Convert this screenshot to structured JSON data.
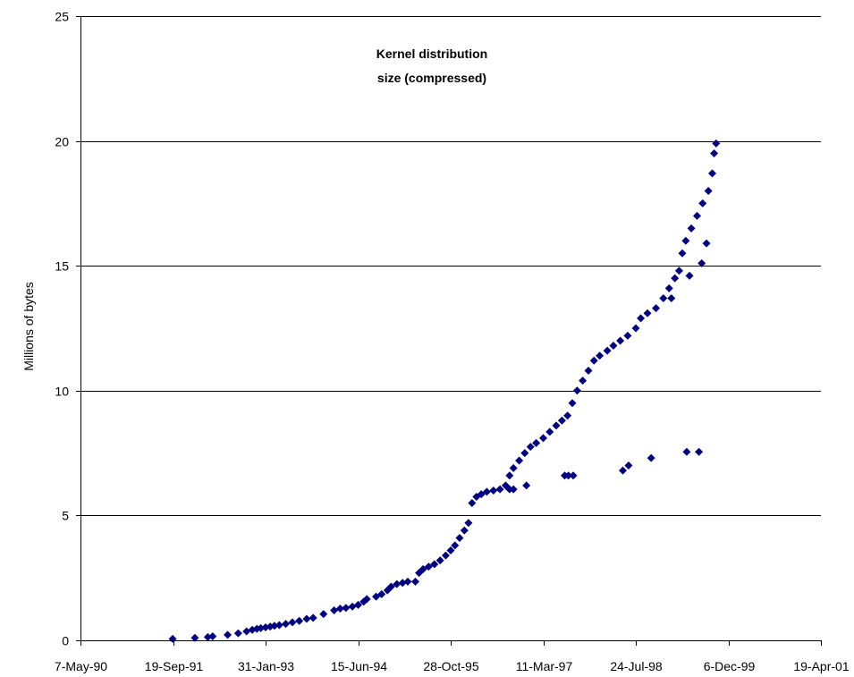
{
  "chart_data": {
    "type": "scatter",
    "title_lines": [
      "Kernel distribution",
      "size (compressed)"
    ],
    "xlabel": "",
    "ylabel": "Millions of bytes",
    "x_axis_type": "date",
    "xlim": [
      "1990-05-07",
      "2001-04-19"
    ],
    "x_ticks": [
      "1990-05-07",
      "1991-09-19",
      "1993-01-31",
      "1994-06-15",
      "1995-10-28",
      "1997-03-11",
      "1998-07-24",
      "1999-12-06",
      "2001-04-19"
    ],
    "x_tick_labels": [
      "7-May-90",
      "19-Sep-91",
      "31-Jan-93",
      "15-Jun-94",
      "28-Oct-95",
      "11-Mar-97",
      "24-Jul-98",
      "6-Dec-99",
      "19-Apr-01"
    ],
    "ylim": [
      0,
      25
    ],
    "y_ticks": [
      0,
      5,
      10,
      15,
      20,
      25
    ],
    "y_tick_labels": [
      "0",
      "5",
      "10",
      "15",
      "20",
      "25"
    ],
    "grid": "horizontal",
    "legend": "none",
    "marker": "diamond",
    "marker_color": "#000080",
    "series": [
      {
        "values": [
          [
            "1991-09-17",
            0.06
          ],
          [
            "1992-01-15",
            0.1
          ],
          [
            "1992-03-25",
            0.13
          ],
          [
            "1992-04-20",
            0.16
          ],
          [
            "1992-07-10",
            0.22
          ],
          [
            "1992-09-05",
            0.28
          ],
          [
            "1992-10-20",
            0.36
          ],
          [
            "1992-11-20",
            0.42
          ],
          [
            "1992-12-15",
            0.46
          ],
          [
            "1993-01-05",
            0.49
          ],
          [
            "1993-01-31",
            0.52
          ],
          [
            "1993-02-25",
            0.55
          ],
          [
            "1993-03-20",
            0.58
          ],
          [
            "1993-04-15",
            0.61
          ],
          [
            "1993-05-20",
            0.66
          ],
          [
            "1993-06-25",
            0.72
          ],
          [
            "1993-08-01",
            0.78
          ],
          [
            "1993-09-10",
            0.86
          ],
          [
            "1993-10-15",
            0.9
          ],
          [
            "1993-12-10",
            1.05
          ],
          [
            "1994-02-05",
            1.2
          ],
          [
            "1994-03-10",
            1.27
          ],
          [
            "1994-04-10",
            1.3
          ],
          [
            "1994-05-15",
            1.35
          ],
          [
            "1994-06-15",
            1.42
          ],
          [
            "1994-07-15",
            1.55
          ],
          [
            "1994-08-01",
            1.65
          ],
          [
            "1994-09-20",
            1.75
          ],
          [
            "1994-10-20",
            1.85
          ],
          [
            "1994-11-20",
            2.0
          ],
          [
            "1994-12-10",
            2.15
          ],
          [
            "1995-01-10",
            2.25
          ],
          [
            "1995-02-10",
            2.3
          ],
          [
            "1995-03-10",
            2.35
          ],
          [
            "1995-04-20",
            2.35
          ],
          [
            "1995-05-10",
            2.7
          ],
          [
            "1995-06-01",
            2.85
          ],
          [
            "1995-07-01",
            2.95
          ],
          [
            "1995-08-01",
            3.05
          ],
          [
            "1995-09-01",
            3.2
          ],
          [
            "1995-10-01",
            3.4
          ],
          [
            "1995-10-28",
            3.6
          ],
          [
            "1995-11-20",
            3.8
          ],
          [
            "1995-12-15",
            4.1
          ],
          [
            "1996-01-10",
            4.4
          ],
          [
            "1996-02-01",
            4.7
          ],
          [
            "1996-02-20",
            5.5
          ],
          [
            "1996-03-15",
            5.75
          ],
          [
            "1996-04-10",
            5.85
          ],
          [
            "1996-05-10",
            5.95
          ],
          [
            "1996-06-15",
            6.0
          ],
          [
            "1996-07-20",
            6.05
          ],
          [
            "1996-08-20",
            6.2
          ],
          [
            "1996-09-10",
            6.6
          ],
          [
            "1996-10-01",
            6.9
          ],
          [
            "1996-11-01",
            7.2
          ],
          [
            "1996-12-01",
            7.5
          ],
          [
            "1997-01-01",
            7.75
          ],
          [
            "1997-02-01",
            7.9
          ],
          [
            "1997-03-11",
            8.1
          ],
          [
            "1997-04-15",
            8.35
          ],
          [
            "1997-05-20",
            8.6
          ],
          [
            "1997-06-20",
            8.8
          ],
          [
            "1997-07-20",
            9.0
          ],
          [
            "1997-08-15",
            9.5
          ],
          [
            "1997-09-10",
            10.0
          ],
          [
            "1997-10-10",
            10.4
          ],
          [
            "1997-11-10",
            10.8
          ],
          [
            "1997-12-10",
            11.2
          ],
          [
            "1998-01-10",
            11.4
          ],
          [
            "1998-02-20",
            11.6
          ],
          [
            "1998-03-25",
            11.8
          ],
          [
            "1998-05-01",
            12.0
          ],
          [
            "1998-06-10",
            12.2
          ],
          [
            "1998-07-24",
            12.5
          ],
          [
            "1998-08-20",
            12.9
          ],
          [
            "1998-09-25",
            13.1
          ],
          [
            "1998-11-10",
            13.3
          ],
          [
            "1998-12-20",
            13.7
          ],
          [
            "1999-01-20",
            14.1
          ],
          [
            "1999-02-20",
            14.5
          ],
          [
            "1999-03-15",
            14.8
          ],
          [
            "1999-04-01",
            15.5
          ],
          [
            "1999-04-20",
            16.0
          ],
          [
            "1999-05-20",
            16.5
          ],
          [
            "1999-06-20",
            17.0
          ],
          [
            "1999-07-20",
            17.5
          ],
          [
            "1999-08-20",
            18.0
          ],
          [
            "1999-09-10",
            18.7
          ],
          [
            "1999-09-20",
            19.5
          ],
          [
            "1999-10-01",
            19.9
          ]
        ]
      },
      {
        "values": [
          [
            "1996-09-10",
            6.05
          ],
          [
            "1996-10-01",
            6.05
          ],
          [
            "1996-12-10",
            6.2
          ],
          [
            "1997-07-05",
            6.6
          ],
          [
            "1997-07-25",
            6.6
          ],
          [
            "1997-08-20",
            6.6
          ],
          [
            "1998-05-15",
            6.8
          ],
          [
            "1998-06-15",
            7.0
          ],
          [
            "1998-10-15",
            7.3
          ],
          [
            "1999-04-25",
            7.55
          ],
          [
            "1999-06-30",
            7.55
          ],
          [
            "1999-07-15",
            15.1
          ],
          [
            "1999-08-10",
            15.9
          ],
          [
            "1999-05-10",
            14.6
          ],
          [
            "1999-02-01",
            13.7
          ]
        ]
      }
    ]
  }
}
